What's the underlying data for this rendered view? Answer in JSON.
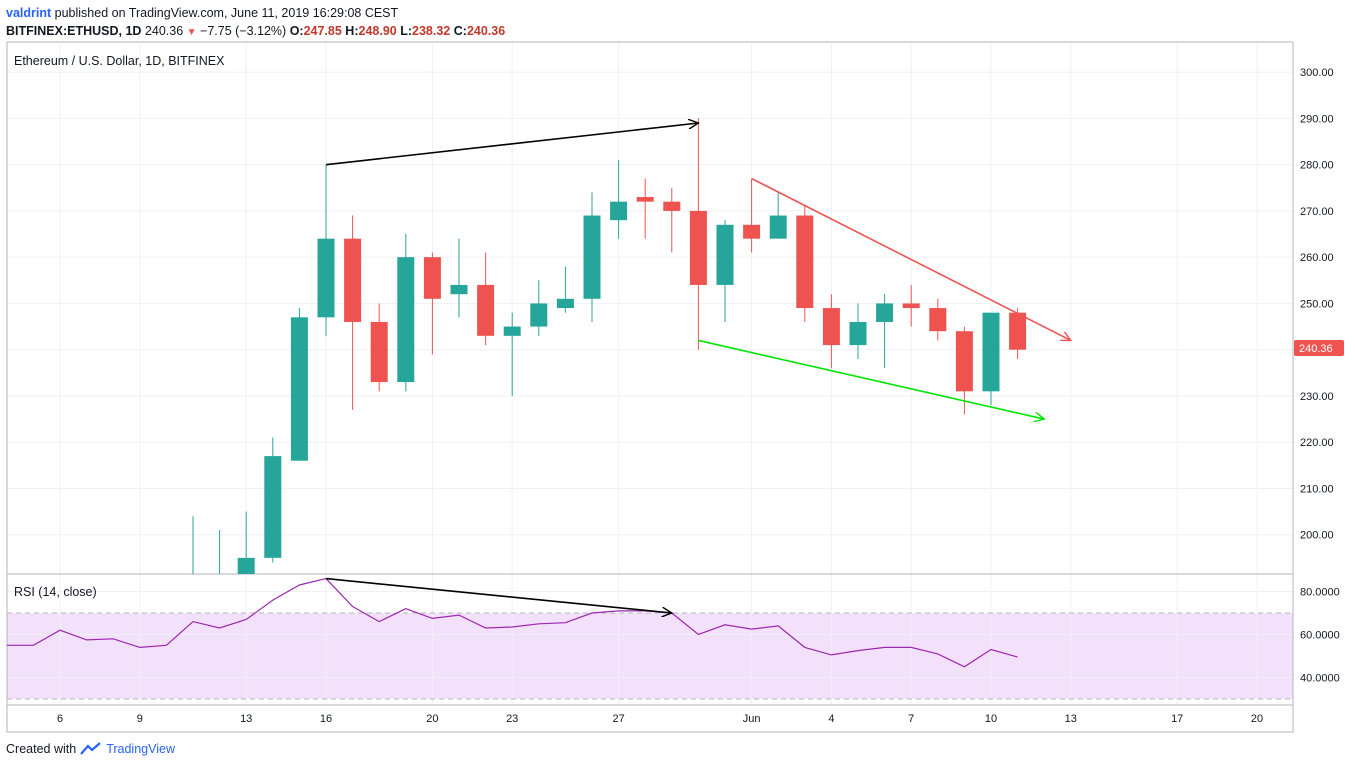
{
  "header": {
    "author": "valdrint",
    "published_text": "published on TradingView.com, June 11, 2019 16:29:08 CEST",
    "symbol": "BITFINEX:ETHUSD, 1D",
    "last": "240.36",
    "change": "−7.75 (−3.12%)",
    "open_label": "O:",
    "open": "247.85",
    "high_label": "H:",
    "high": "248.90",
    "low_label": "L:",
    "low": "238.32",
    "close_label": "C:",
    "close": "240.36"
  },
  "footer": {
    "created_with": "Created with",
    "brand": "TradingView"
  },
  "colors": {
    "up": "#26a69a",
    "down": "#ef5350",
    "rsi_line": "#9c27b0",
    "rsi_band": "#f3e1fb",
    "trend_black": "#000000",
    "trend_red": "#ef5350",
    "trend_green": "#00e600"
  },
  "chart_data": [
    {
      "type": "candlestick",
      "title": "Ethereum / U.S. Dollar, 1D, BITFINEX",
      "ylim": [
        190,
        305
      ],
      "y_ticks": [
        "300.00",
        "290.00",
        "280.00",
        "270.00",
        "260.00",
        "250.00",
        "240.00",
        "230.00",
        "220.00",
        "210.00",
        "200.00"
      ],
      "x_tick_labels": [
        "6",
        "9",
        "13",
        "16",
        "20",
        "23",
        "27",
        "Jun",
        "4",
        "7",
        "10",
        "13",
        "17",
        "20"
      ],
      "last_price_label": "240.36",
      "grid": true,
      "candles": [
        {
          "date": "2019-05-11",
          "o": 190,
          "h": 204,
          "l": 190,
          "c": 190
        },
        {
          "date": "2019-05-12",
          "o": 190,
          "h": 201,
          "l": 190,
          "c": 190
        },
        {
          "date": "2019-05-13",
          "o": 190,
          "h": 205,
          "l": 190,
          "c": 195
        },
        {
          "date": "2019-05-14",
          "o": 195,
          "h": 221,
          "l": 194,
          "c": 217
        },
        {
          "date": "2019-05-15",
          "o": 216,
          "h": 249,
          "l": 216,
          "c": 247
        },
        {
          "date": "2019-05-16",
          "o": 247,
          "h": 280,
          "l": 243,
          "c": 264
        },
        {
          "date": "2019-05-17",
          "o": 264,
          "h": 269,
          "l": 227,
          "c": 246
        },
        {
          "date": "2019-05-18",
          "o": 246,
          "h": 250,
          "l": 231,
          "c": 233
        },
        {
          "date": "2019-05-19",
          "o": 233,
          "h": 265,
          "l": 231,
          "c": 260
        },
        {
          "date": "2019-05-20",
          "o": 260,
          "h": 261,
          "l": 239,
          "c": 251
        },
        {
          "date": "2019-05-21",
          "o": 252,
          "h": 264,
          "l": 247,
          "c": 254
        },
        {
          "date": "2019-05-22",
          "o": 254,
          "h": 261,
          "l": 241,
          "c": 243
        },
        {
          "date": "2019-05-23",
          "o": 243,
          "h": 248,
          "l": 230,
          "c": 245
        },
        {
          "date": "2019-05-24",
          "o": 245,
          "h": 255,
          "l": 243,
          "c": 250
        },
        {
          "date": "2019-05-25",
          "o": 249,
          "h": 258,
          "l": 248,
          "c": 251
        },
        {
          "date": "2019-05-26",
          "o": 251,
          "h": 274,
          "l": 246,
          "c": 269
        },
        {
          "date": "2019-05-27",
          "o": 268,
          "h": 281,
          "l": 264,
          "c": 272
        },
        {
          "date": "2019-05-28",
          "o": 273,
          "h": 277,
          "l": 264,
          "c": 272
        },
        {
          "date": "2019-05-29",
          "o": 272,
          "h": 275,
          "l": 261,
          "c": 270
        },
        {
          "date": "2019-05-30",
          "o": 270,
          "h": 290,
          "l": 240,
          "c": 254
        },
        {
          "date": "2019-05-31",
          "o": 254,
          "h": 268,
          "l": 246,
          "c": 267
        },
        {
          "date": "2019-06-01",
          "o": 267,
          "h": 277,
          "l": 261,
          "c": 264
        },
        {
          "date": "2019-06-02",
          "o": 264,
          "h": 274,
          "l": 264,
          "c": 269
        },
        {
          "date": "2019-06-03",
          "o": 269,
          "h": 271,
          "l": 246,
          "c": 249
        },
        {
          "date": "2019-06-04",
          "o": 249,
          "h": 252,
          "l": 236,
          "c": 241
        },
        {
          "date": "2019-06-05",
          "o": 241,
          "h": 250,
          "l": 238,
          "c": 246
        },
        {
          "date": "2019-06-06",
          "o": 246,
          "h": 252,
          "l": 236,
          "c": 250
        },
        {
          "date": "2019-06-07",
          "o": 250,
          "h": 254,
          "l": 245,
          "c": 249
        },
        {
          "date": "2019-06-08",
          "o": 249,
          "h": 251,
          "l": 242,
          "c": 244
        },
        {
          "date": "2019-06-09",
          "o": 244,
          "h": 245,
          "l": 226,
          "c": 231
        },
        {
          "date": "2019-06-10",
          "o": 231,
          "h": 248,
          "l": 228,
          "c": 248
        },
        {
          "date": "2019-06-11",
          "o": 248,
          "h": 249,
          "l": 238,
          "c": 240
        }
      ],
      "trendlines": [
        {
          "color": "black",
          "from": {
            "date": "2019-05-16",
            "y": 280
          },
          "to": {
            "date": "2019-05-30",
            "y": 289
          },
          "arrow": true
        },
        {
          "color": "red",
          "from": {
            "date": "2019-06-01",
            "y": 277
          },
          "to": {
            "date": "2019-06-13",
            "y": 242
          },
          "arrow": true
        },
        {
          "color": "green",
          "from": {
            "date": "2019-05-30",
            "y": 242
          },
          "to": {
            "date": "2019-06-12",
            "y": 225
          },
          "arrow": true
        }
      ]
    },
    {
      "type": "line",
      "title": "RSI (14, close)",
      "ylim": [
        30,
        90
      ],
      "y_ticks": [
        "80.0000",
        "60.0000",
        "40.0000"
      ],
      "band": [
        30,
        70
      ],
      "series": [
        {
          "values": [
            {
              "date": "2019-05-04",
              "y": 55
            },
            {
              "date": "2019-05-05",
              "y": 55
            },
            {
              "date": "2019-05-06",
              "y": 62
            },
            {
              "date": "2019-05-07",
              "y": 57.5
            },
            {
              "date": "2019-05-08",
              "y": 58
            },
            {
              "date": "2019-05-09",
              "y": 54
            },
            {
              "date": "2019-05-10",
              "y": 55
            },
            {
              "date": "2019-05-11",
              "y": 66
            },
            {
              "date": "2019-05-12",
              "y": 63
            },
            {
              "date": "2019-05-13",
              "y": 67
            },
            {
              "date": "2019-05-14",
              "y": 76
            },
            {
              "date": "2019-05-15",
              "y": 83
            },
            {
              "date": "2019-05-16",
              "y": 86
            },
            {
              "date": "2019-05-17",
              "y": 73
            },
            {
              "date": "2019-05-18",
              "y": 66
            },
            {
              "date": "2019-05-19",
              "y": 72
            },
            {
              "date": "2019-05-20",
              "y": 67.5
            },
            {
              "date": "2019-05-21",
              "y": 69
            },
            {
              "date": "2019-05-22",
              "y": 63
            },
            {
              "date": "2019-05-23",
              "y": 63.5
            },
            {
              "date": "2019-05-24",
              "y": 65
            },
            {
              "date": "2019-05-25",
              "y": 65.5
            },
            {
              "date": "2019-05-26",
              "y": 70
            },
            {
              "date": "2019-05-27",
              "y": 71
            },
            {
              "date": "2019-05-28",
              "y": 71
            },
            {
              "date": "2019-05-29",
              "y": 70
            },
            {
              "date": "2019-05-30",
              "y": 60
            },
            {
              "date": "2019-05-31",
              "y": 64.5
            },
            {
              "date": "2019-06-01",
              "y": 62.5
            },
            {
              "date": "2019-06-02",
              "y": 64
            },
            {
              "date": "2019-06-03",
              "y": 54
            },
            {
              "date": "2019-06-04",
              "y": 50.5
            },
            {
              "date": "2019-06-05",
              "y": 52.5
            },
            {
              "date": "2019-06-06",
              "y": 54
            },
            {
              "date": "2019-06-07",
              "y": 54
            },
            {
              "date": "2019-06-08",
              "y": 51
            },
            {
              "date": "2019-06-09",
              "y": 45
            },
            {
              "date": "2019-06-10",
              "y": 53
            },
            {
              "date": "2019-06-11",
              "y": 49.5
            }
          ]
        }
      ],
      "trendlines": [
        {
          "color": "black",
          "from": {
            "date": "2019-05-16",
            "y": 86
          },
          "to": {
            "date": "2019-05-29",
            "y": 70
          },
          "arrow": true
        }
      ]
    }
  ]
}
